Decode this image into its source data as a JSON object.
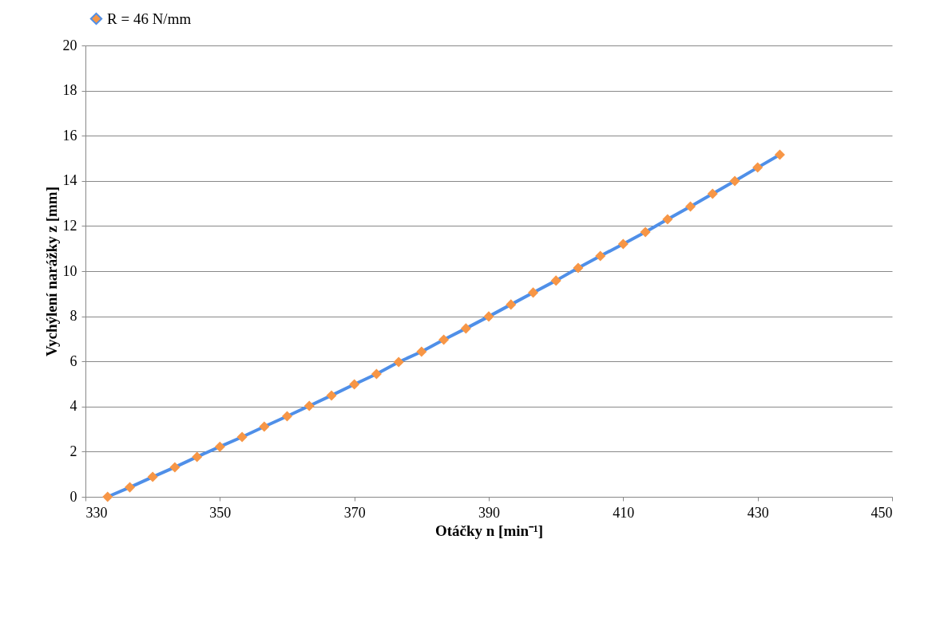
{
  "chart_data": {
    "type": "line",
    "xlabel": "Otáčky n [min⁻¹]",
    "ylabel": "Vychýlení narážky z [mm]",
    "x": [
      333.3,
      336.6,
      340.0,
      343.3,
      346.6,
      350.0,
      353.3,
      356.6,
      360.0,
      363.3,
      366.6,
      370.0,
      373.3,
      376.6,
      380.0,
      383.3,
      386.6,
      390.0,
      393.3,
      396.6,
      400.0,
      403.3,
      406.6,
      410.0,
      413.3,
      416.6,
      420.0,
      423.3,
      426.6,
      430.0,
      433.3
    ],
    "series": [
      {
        "name": "R = 46 N/mm",
        "color": "#4f8fe8",
        "values": [
          0,
          0.42,
          0.88,
          1.31,
          1.77,
          2.22,
          2.65,
          3.11,
          3.57,
          4.03,
          4.49,
          4.98,
          5.44,
          5.97,
          6.43,
          6.96,
          7.46,
          7.99,
          8.52,
          9.05,
          9.58,
          10.14,
          10.67,
          11.2,
          11.73,
          12.3,
          12.86,
          13.43,
          13.99,
          14.59,
          15.16
        ]
      }
    ],
    "xlim": [
      330,
      450
    ],
    "xticks": [
      330,
      350,
      370,
      390,
      410,
      430,
      450
    ],
    "ylim": [
      0,
      20
    ],
    "yticks": [
      0,
      2,
      4,
      6,
      8,
      10,
      12,
      14,
      16,
      18,
      20
    ],
    "grid": "y",
    "legend": "top",
    "marker": "diamond",
    "line_style": "solid"
  }
}
